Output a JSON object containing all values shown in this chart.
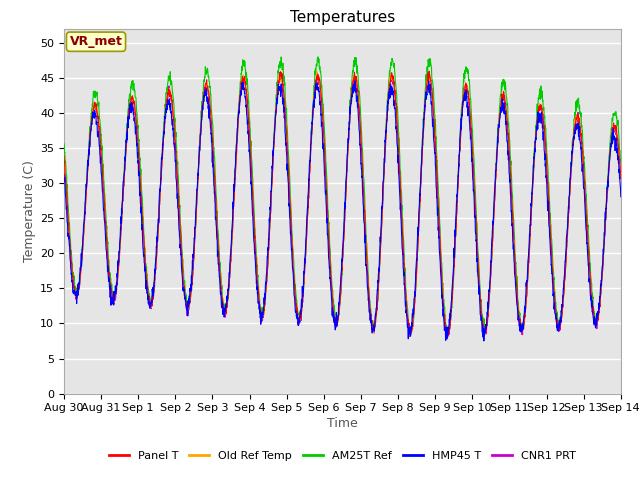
{
  "title": "Temperatures",
  "xlabel": "Time",
  "ylabel": "Temperature (C)",
  "ylim": [
    0,
    52
  ],
  "yticks": [
    0,
    5,
    10,
    15,
    20,
    25,
    30,
    35,
    40,
    45,
    50
  ],
  "plot_background": "#e5e5e5",
  "annotation_text": "VR_met",
  "annotation_box_color": "#ffffcc",
  "annotation_border_color": "#999900",
  "legend_entries": [
    "Panel T",
    "Old Ref Temp",
    "AM25T Ref",
    "HMP45 T",
    "CNR1 PRT"
  ],
  "line_colors": [
    "#ff0000",
    "#ffa500",
    "#00cc00",
    "#0000ff",
    "#cc00cc"
  ],
  "title_fontsize": 11,
  "label_fontsize": 9,
  "tick_fontsize": 8,
  "grid_color": "#ffffff",
  "grid_linewidth": 1.0,
  "tick_labels": [
    "Aug 30",
    "Aug 31",
    "Sep 1",
    "Sep 2",
    "Sep 3",
    "Sep 4",
    "Sep 5",
    "Sep 6",
    "Sep 7",
    "Sep 8",
    "Sep 9",
    "Sep 10",
    "Sep 11",
    "Sep 12",
    "Sep 13",
    "Sep 14"
  ]
}
